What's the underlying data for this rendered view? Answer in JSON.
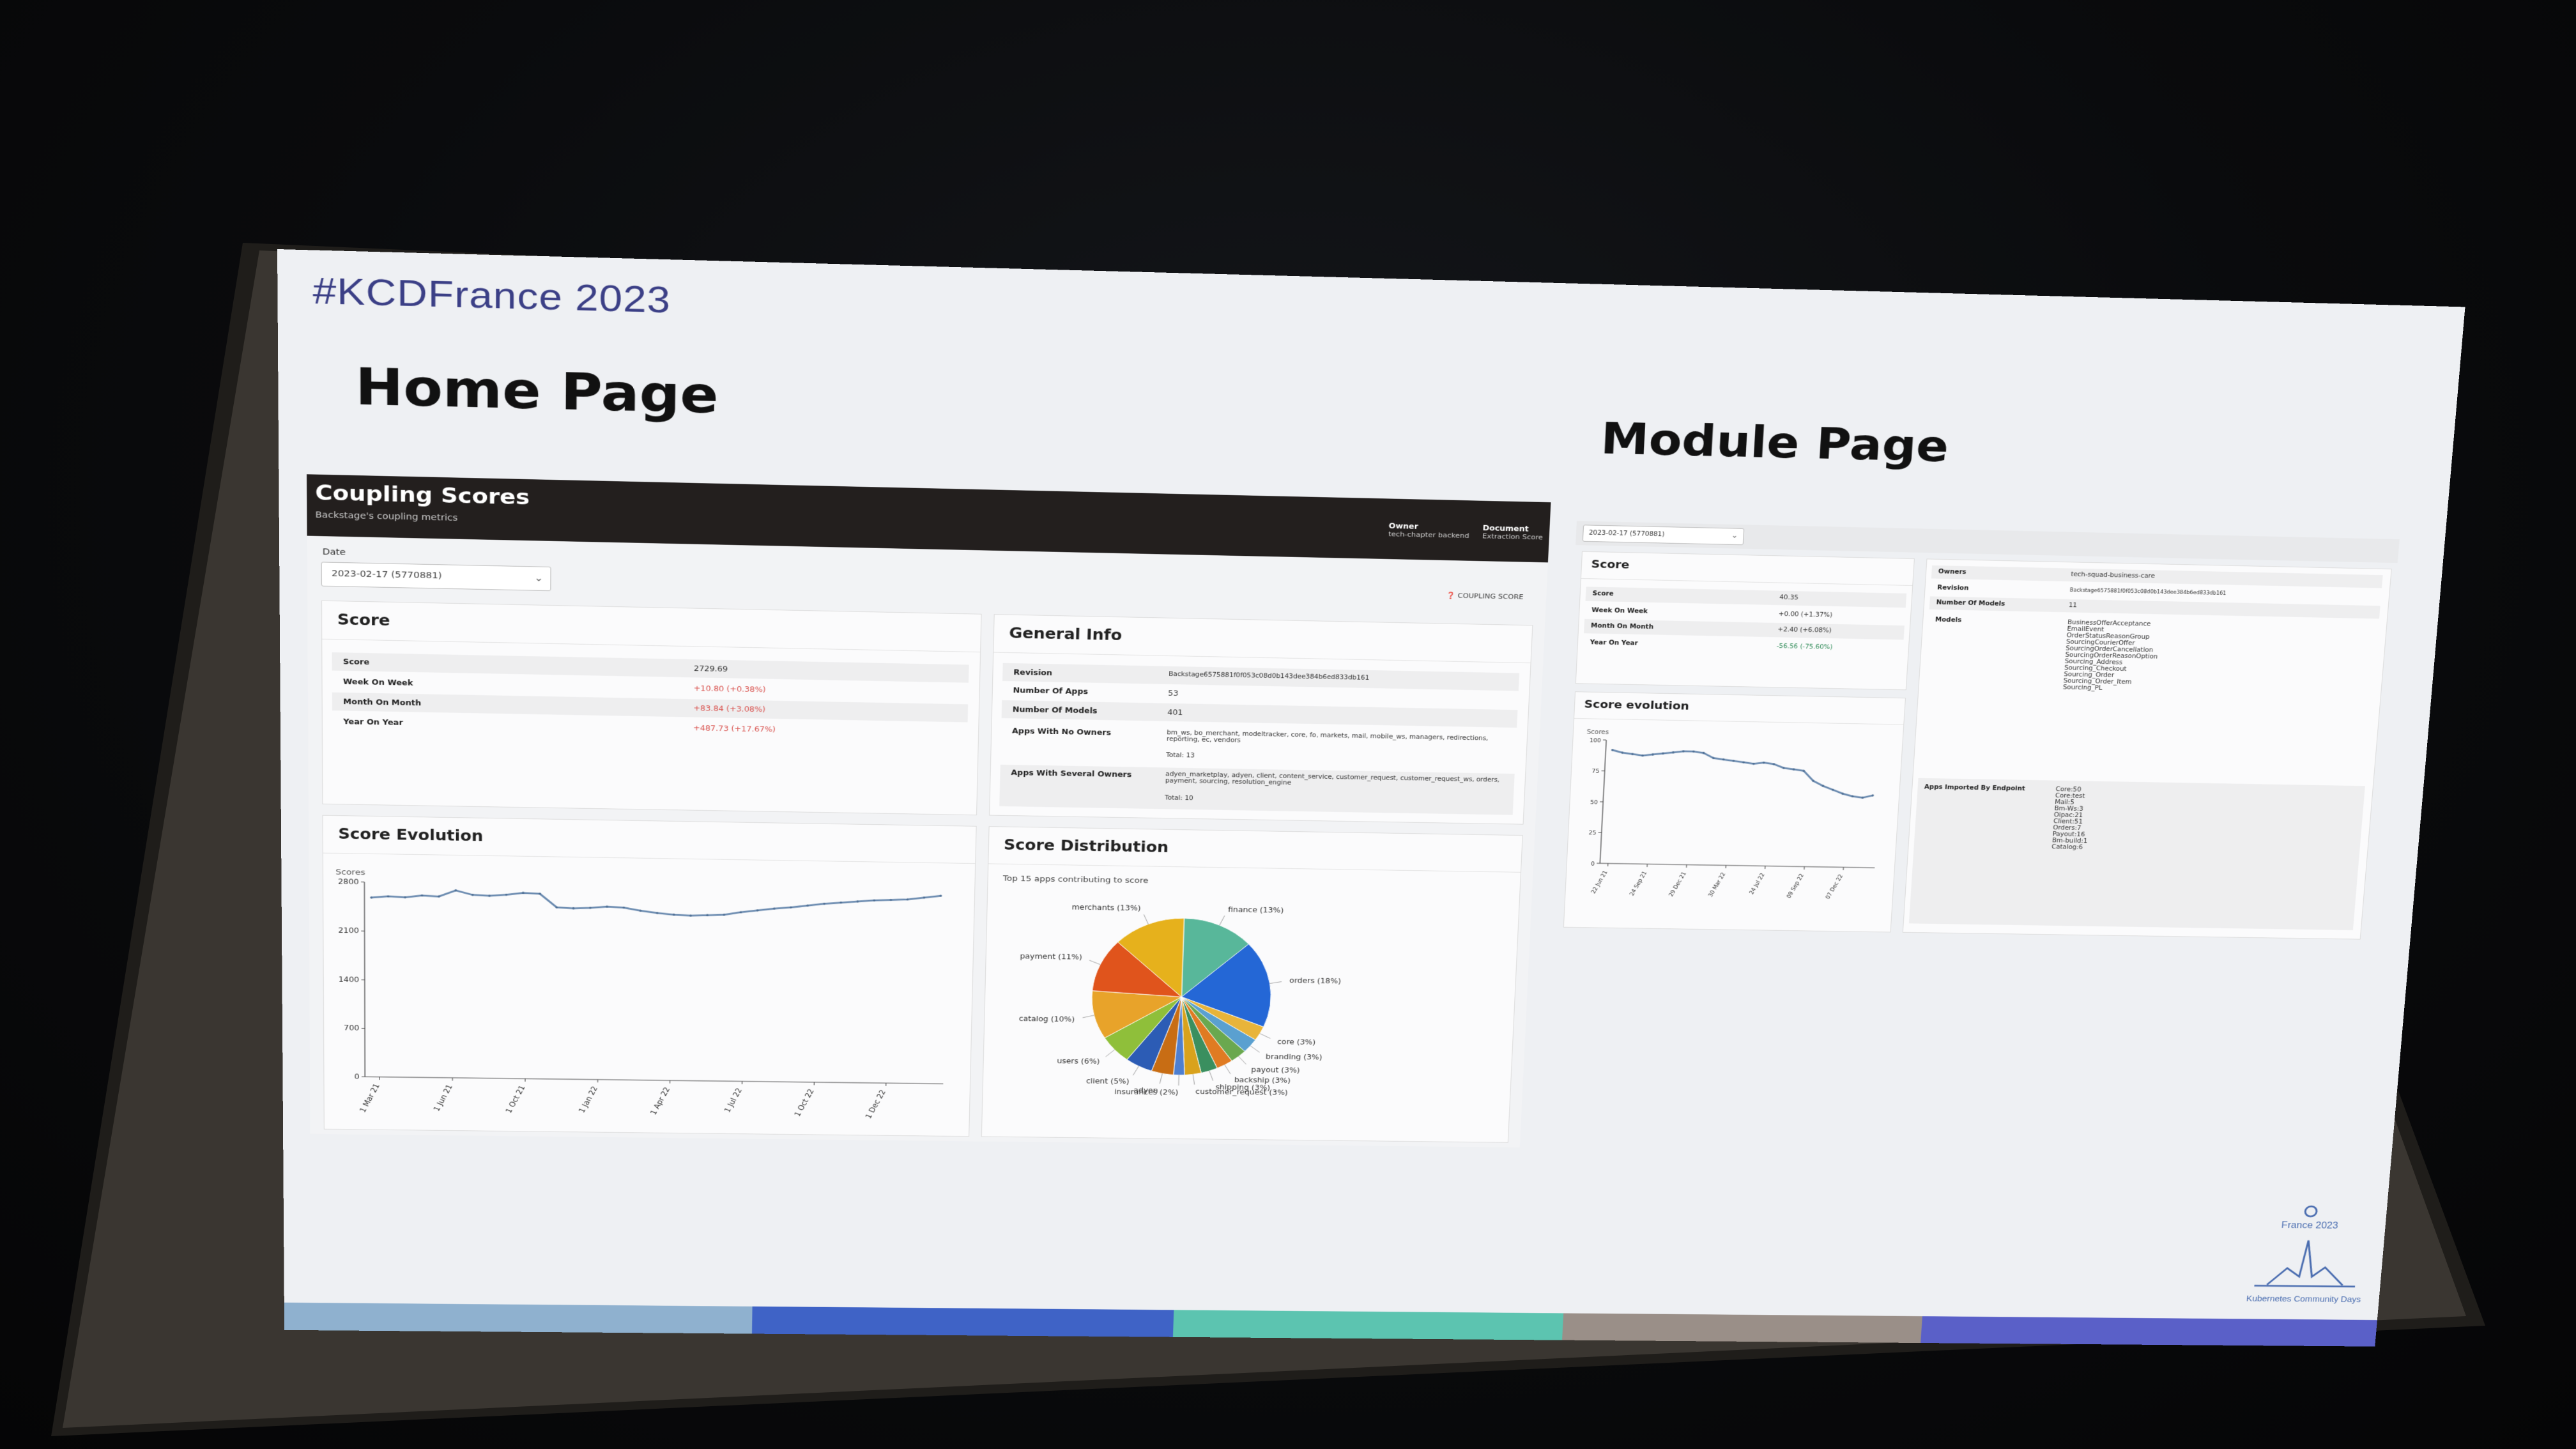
{
  "slide": {
    "hashtag": "#KCDFrance 2023",
    "home_title": "Home Page",
    "module_title": "Module Page"
  },
  "home": {
    "header": {
      "title": "Coupling Scores",
      "subtitle": "Backstage's coupling metrics",
      "owner_label": "Owner",
      "owner_sub": "tech-chapter backend",
      "document_label": "Document",
      "document_sub": "Extraction Score"
    },
    "date_label": "Date",
    "date_value": "2023-02-17 (5770881)",
    "coupling_link": "COUPLING SCORE",
    "score_card": {
      "title": "Score",
      "rows": [
        {
          "label": "Score",
          "value": "2729.69"
        },
        {
          "label": "Week On Week",
          "value": "+10.80 (+0.38%)"
        },
        {
          "label": "Month On Month",
          "value": "+83.84 (+3.08%)"
        },
        {
          "label": "Year On Year",
          "value": "+487.73 (+17.67%)"
        }
      ]
    },
    "general_info": {
      "title": "General Info",
      "rows": [
        {
          "label": "Revision",
          "value": "Backstage6575881f0f053c08d0b143dee384b6ed833db161"
        },
        {
          "label": "Number Of Apps",
          "value": "53"
        },
        {
          "label": "Number Of Models",
          "value": "401"
        },
        {
          "label": "Apps With No Owners",
          "value": "bm_ws, bo_merchant, modeltracker, core, fo, markets, mail, mobile_ws, managers, redirections, reporting, ec, vendors",
          "extra": "Total: 13"
        },
        {
          "label": "Apps With Several Owners",
          "value": "adyen_marketplay, adyen, client, content_service, customer_request, customer_request_ws, orders, payment, sourcing, resolution_engine",
          "extra": "Total: 10"
        }
      ]
    },
    "score_evolution": {
      "title": "Score Evolution",
      "ylabel": "Scores"
    },
    "score_distribution": {
      "title": "Score Distribution",
      "caption": "Top 15 apps contributing to score"
    }
  },
  "module": {
    "date_value": "2023-02-17 (5770881)",
    "score_card": {
      "title": "Score",
      "rows": [
        {
          "label": "Score",
          "value": "40.35"
        },
        {
          "label": "Week On Week",
          "value": "+0.00 (+1.37%)"
        },
        {
          "label": "Month On Month",
          "value": "+2.40 (+6.08%)"
        },
        {
          "label": "Year On Year",
          "value": "-56.56 (-75.60%)"
        }
      ]
    },
    "evolution": {
      "title": "Score evolution",
      "ylabel": "Scores"
    },
    "info": {
      "rows": [
        {
          "label": "Owners",
          "value": "tech-squad-business-care"
        },
        {
          "label": "Revision",
          "value": "Backstage6575881f0f053c08d0b143dee384b6ed833db161"
        },
        {
          "label": "Number Of Models",
          "value": "11"
        }
      ],
      "models_label": "Models",
      "models": [
        "BusinessOfferAcceptance",
        "EmailEvent",
        "OrderStatusReasonGroup",
        "SourcingCourierOffer",
        "SourcingOrderCancellation",
        "SourcingOrderReasonOption",
        "Sourcing_Address",
        "Sourcing_Checkout",
        "Sourcing_Order",
        "Sourcing_Order_Item",
        "Sourcing_PL"
      ],
      "apps_label": "Apps Imported By Endpoint",
      "apps": [
        "Core:50",
        "Core:test",
        "Mail:5",
        "Bm-Ws:3",
        "Oipac:21",
        "Client:51",
        "Orders:7",
        "Payout:16",
        "Bm-build:1",
        "Catalog:6"
      ]
    }
  },
  "chart_data": [
    {
      "type": "line",
      "title": "Score Evolution",
      "ylabel": "Scores",
      "ylim": [
        0,
        2800
      ],
      "yticks": [
        0,
        700,
        1400,
        2100,
        2800
      ],
      "xtick_labels": [
        "1 Mar 21",
        "1 Jun 21",
        "1 Oct 21",
        "1 Jan 22",
        "1 Apr 22",
        "1 Jul 22",
        "1 Oct 22",
        "1 Dec 22"
      ],
      "series": [
        {
          "values": [
            2580,
            2600,
            2590,
            2620,
            2610,
            2700,
            2640,
            2630,
            2650,
            2680,
            2670,
            2480,
            2470,
            2480,
            2500,
            2490,
            2450,
            2420,
            2400,
            2390,
            2400,
            2410,
            2450,
            2480,
            2510,
            2530,
            2560,
            2590,
            2610,
            2630,
            2650,
            2660,
            2670,
            2700,
            2730
          ]
        }
      ]
    },
    {
      "type": "pie",
      "title": "Score Distribution",
      "categories": [
        "finance",
        "orders",
        "core",
        "branding",
        "payout",
        "backship",
        "shipping",
        "customer_request",
        "insurances",
        "adyen",
        "client",
        "users",
        "catalog",
        "payment",
        "merchants"
      ],
      "values": [
        13,
        18,
        3,
        3,
        3,
        3,
        3,
        3,
        2,
        4,
        5,
        6,
        10,
        11,
        13
      ],
      "labels": [
        "finance (13%)",
        "orders (18%)",
        "core (3%)",
        "branding (3%)",
        "payout (3%)",
        "backship (3%)",
        "shipping (3%)",
        "customer_request (3%)",
        "insurances (2%)",
        "adyen",
        "client (5%)",
        "users (6%)",
        "catalog (10%)",
        "payment (11%)",
        "merchants (13%)"
      ],
      "colors": [
        "#58b79a",
        "#2467d6",
        "#e8b43a",
        "#5aa0d0",
        "#6aa84f",
        "#e07b22",
        "#3a8f5f",
        "#d9a21c",
        "#4e7fd0",
        "#c86d14",
        "#2c5cb5",
        "#8fbf3a",
        "#e8a32a",
        "#e0541c",
        "#e6b11c"
      ]
    },
    {
      "type": "line",
      "title": "Score evolution",
      "ylabel": "Scores",
      "ylim": [
        0,
        100
      ],
      "yticks": [
        0,
        25,
        50,
        75,
        100
      ],
      "xtick_labels": [
        "22 Jun 21",
        "24 Sep 21",
        "29 Dec 21",
        "30 Mar 22",
        "24 Jul 22",
        "09 Sep 22",
        "07 Dec 22"
      ],
      "series": [
        {
          "values": [
            92,
            90,
            89,
            88,
            89,
            90,
            91,
            92,
            92,
            91,
            87,
            86,
            85,
            84,
            83,
            84,
            83,
            80,
            79,
            78,
            70,
            66,
            63,
            60,
            58,
            57,
            59
          ]
        }
      ]
    }
  ]
}
